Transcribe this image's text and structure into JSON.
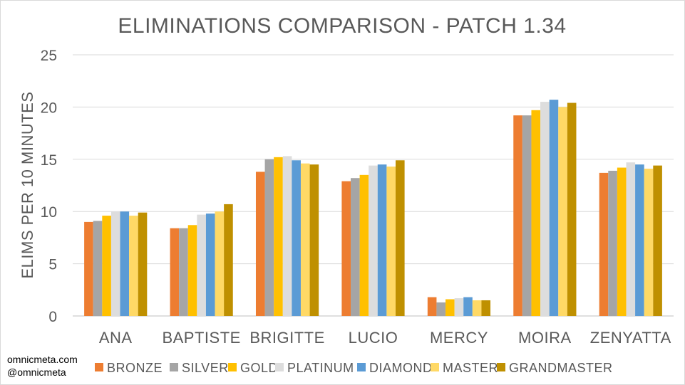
{
  "watermark": {
    "line1": "omnicmeta.com",
    "line2": "@omnicmeta"
  },
  "chart_data": {
    "type": "bar",
    "title": "ELIMINATIONS COMPARISON - PATCH 1.34",
    "xlabel": "",
    "ylabel": "ELIMS PER 10 MINUTES",
    "ylim": [
      0,
      25
    ],
    "yticks": [
      0,
      5,
      10,
      15,
      20,
      25
    ],
    "grid": true,
    "legend_position": "bottom",
    "categories": [
      "ANA",
      "BAPTISTE",
      "BRIGITTE",
      "LUCIO",
      "MERCY",
      "MOIRA",
      "ZENYATTA"
    ],
    "series": [
      {
        "name": "BRONZE",
        "color": "#ED7D31",
        "values": [
          9.0,
          8.4,
          13.8,
          12.9,
          1.8,
          19.2,
          13.7
        ]
      },
      {
        "name": "SILVER",
        "color": "#A5A5A5",
        "values": [
          9.1,
          8.4,
          15.0,
          13.2,
          1.3,
          19.2,
          13.9
        ]
      },
      {
        "name": "GOLD",
        "color": "#FFC000",
        "values": [
          9.6,
          8.7,
          15.2,
          13.5,
          1.6,
          19.7,
          14.2
        ]
      },
      {
        "name": "PLATINUM",
        "color": "#DDDDDD",
        "values": [
          10.0,
          9.7,
          15.3,
          14.4,
          1.7,
          20.5,
          14.7
        ]
      },
      {
        "name": "DIAMOND",
        "color": "#5B9BD5",
        "values": [
          10.0,
          9.8,
          14.9,
          14.5,
          1.8,
          20.7,
          14.5
        ]
      },
      {
        "name": "MASTER",
        "color": "#FFD966",
        "values": [
          9.6,
          10.0,
          14.6,
          14.3,
          1.5,
          20.0,
          14.1
        ]
      },
      {
        "name": "GRANDMASTER",
        "color": "#BF9000",
        "values": [
          9.9,
          10.7,
          14.5,
          14.9,
          1.5,
          20.4,
          14.4
        ]
      }
    ]
  }
}
